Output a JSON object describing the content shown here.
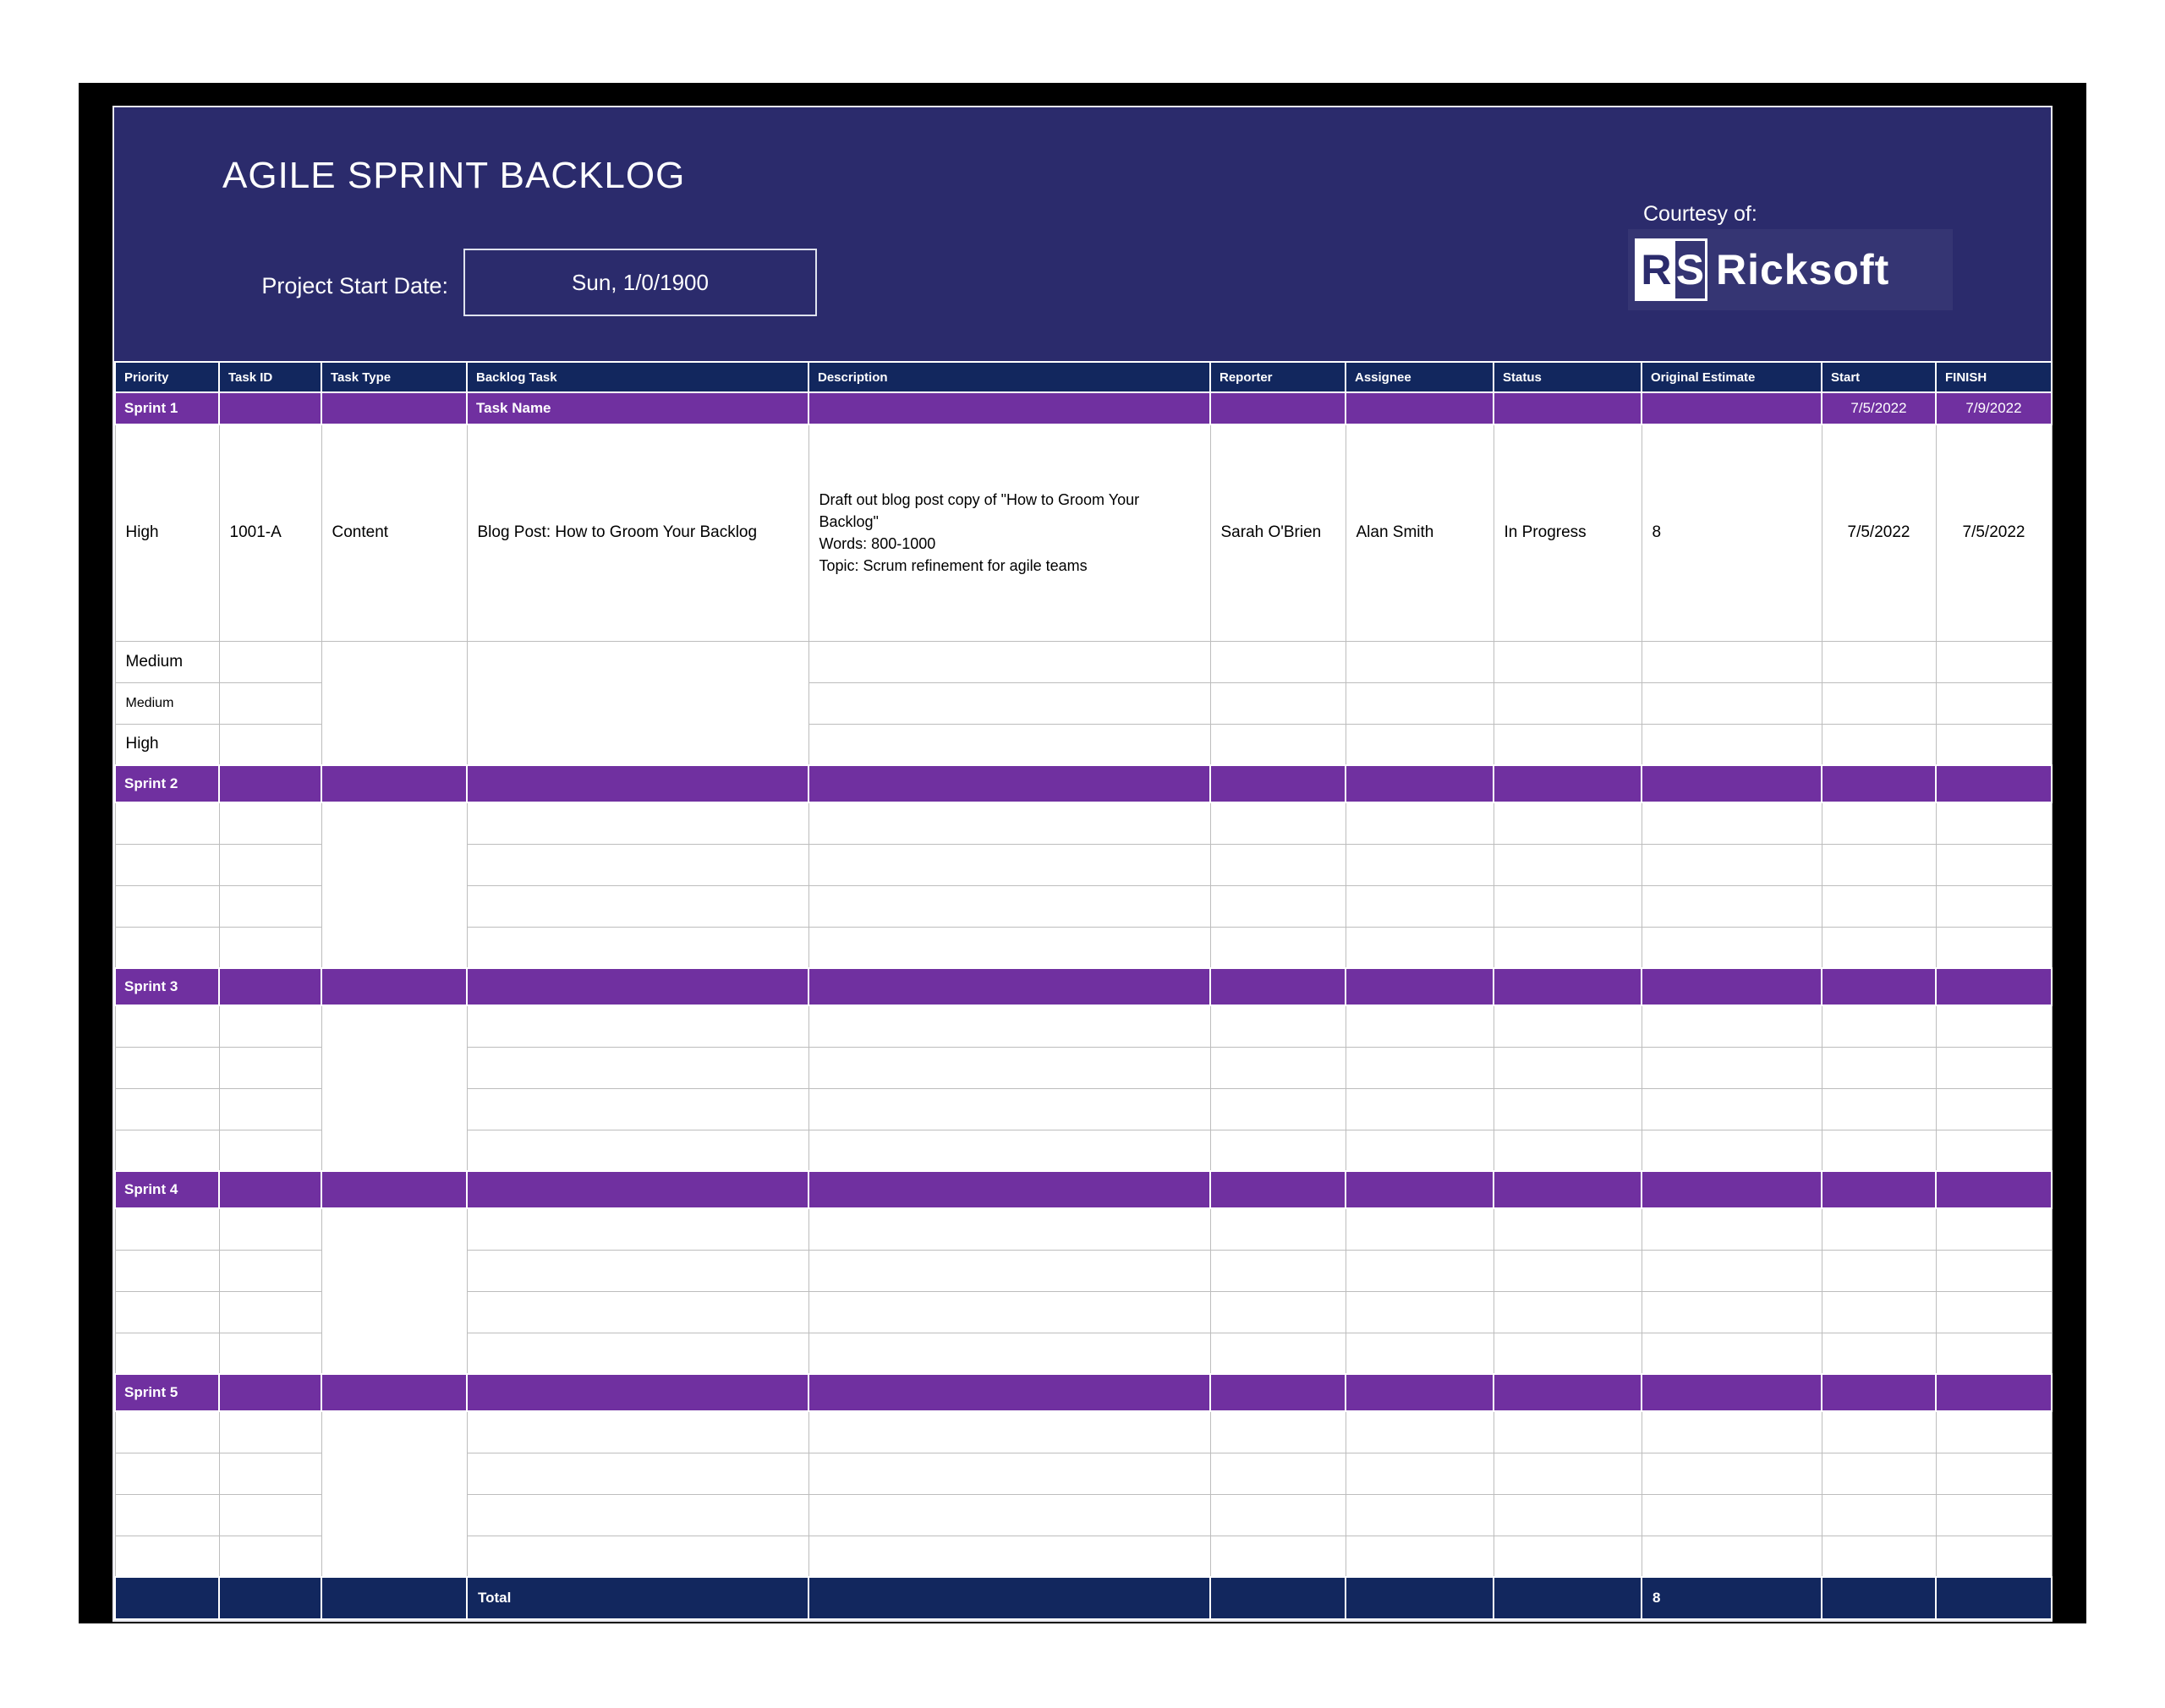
{
  "banner": {
    "title": "AGILE SPRINT BACKLOG",
    "project_start_label": "Project Start Date:",
    "project_start_value": "Sun, 1/0/1900",
    "courtesy_label": "Courtesy of:",
    "logo_monogram_r": "R",
    "logo_monogram_s": "S",
    "logo_name": "Ricksoft"
  },
  "colors": {
    "banner_bg": "#2b2b6c",
    "table_header_bg": "#12275e",
    "sprint_band_bg": "#7030a0",
    "total_row_bg": "#12275e",
    "grid_line": "#bdbdbd",
    "frame": "#000000"
  },
  "table": {
    "columns": [
      {
        "key": "priority",
        "label": "Priority"
      },
      {
        "key": "task_id",
        "label": "Task ID"
      },
      {
        "key": "task_type",
        "label": "Task Type"
      },
      {
        "key": "backlog_task",
        "label": "Backlog Task"
      },
      {
        "key": "description",
        "label": "Description"
      },
      {
        "key": "reporter",
        "label": "Reporter"
      },
      {
        "key": "assignee",
        "label": "Assignee"
      },
      {
        "key": "status",
        "label": "Status"
      },
      {
        "key": "original_estimate",
        "label": "Original Estimate"
      },
      {
        "key": "start",
        "label": "Start"
      },
      {
        "key": "finish",
        "label": "FINISH"
      }
    ],
    "sprints": [
      {
        "label": "Sprint 1",
        "band": {
          "backlog_task": "Task Name",
          "start": "7/5/2022",
          "finish": "7/9/2022"
        },
        "rows": [
          {
            "priority": "High",
            "task_id": "1001-A",
            "task_type": "Content",
            "backlog_task": "Blog Post: How to Groom Your Backlog",
            "description": "Draft out blog post copy of \"How to Groom Your Backlog\"\nWords: 800-1000\nTopic: Scrum refinement for agile teams",
            "reporter": "Sarah O'Brien",
            "assignee": "Alan Smith",
            "status": "In Progress",
            "original_estimate": "8",
            "start": "7/5/2022",
            "finish": "7/5/2022"
          },
          {
            "priority": "Medium",
            "priority_style": "md"
          },
          {
            "priority": "Medium",
            "priority_style": "sm"
          },
          {
            "priority": "High",
            "priority_style": "md"
          }
        ]
      },
      {
        "label": "Sprint 2",
        "band": {},
        "empty_rows": 4
      },
      {
        "label": "Sprint 3",
        "band": {},
        "empty_rows": 4
      },
      {
        "label": "Sprint 4",
        "band": {},
        "empty_rows": 4
      },
      {
        "label": "Sprint 5",
        "band": {},
        "empty_rows": 4
      }
    ],
    "total": {
      "label": "Total",
      "original_estimate": "8"
    }
  }
}
